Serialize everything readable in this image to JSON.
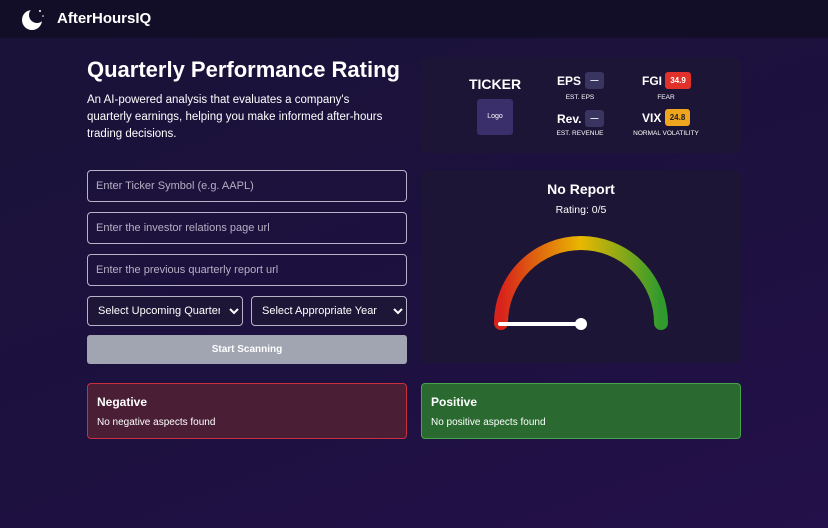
{
  "header": {
    "brand": "AfterHoursIQ"
  },
  "intro": {
    "title": "Quarterly Performance Rating",
    "description": "An AI-powered analysis that evaluates a company's quarterly earnings, helping you make informed after-hours trading decisions."
  },
  "form": {
    "ticker_placeholder": "Enter Ticker Symbol (e.g. AAPL)",
    "ir_url_placeholder": "Enter the investor relations page url",
    "prev_report_placeholder": "Enter the previous quarterly report url",
    "quarter_select": "Select Upcoming Quarter",
    "year_select": "Select Appropriate Year",
    "button": "Start Scanning"
  },
  "ticker_card": {
    "ticker": "TICKER",
    "logo": "Logo",
    "eps": {
      "label": "EPS",
      "value": "—",
      "caption": "EST. EPS"
    },
    "rev": {
      "label": "Rev.",
      "value": "—",
      "caption": "EST. REVENUE"
    },
    "fgi": {
      "label": "FGI",
      "value": "34.9",
      "caption": "FEAR"
    },
    "vix": {
      "label": "VIX",
      "value": "24.8",
      "caption": "NORMAL VOLATILITY"
    }
  },
  "rating": {
    "title": "No Report",
    "subtitle": "Rating: 0/5"
  },
  "negative": {
    "title": "Negative",
    "text": "No negative aspects found"
  },
  "positive": {
    "title": "Positive",
    "text": "No positive aspects found"
  }
}
